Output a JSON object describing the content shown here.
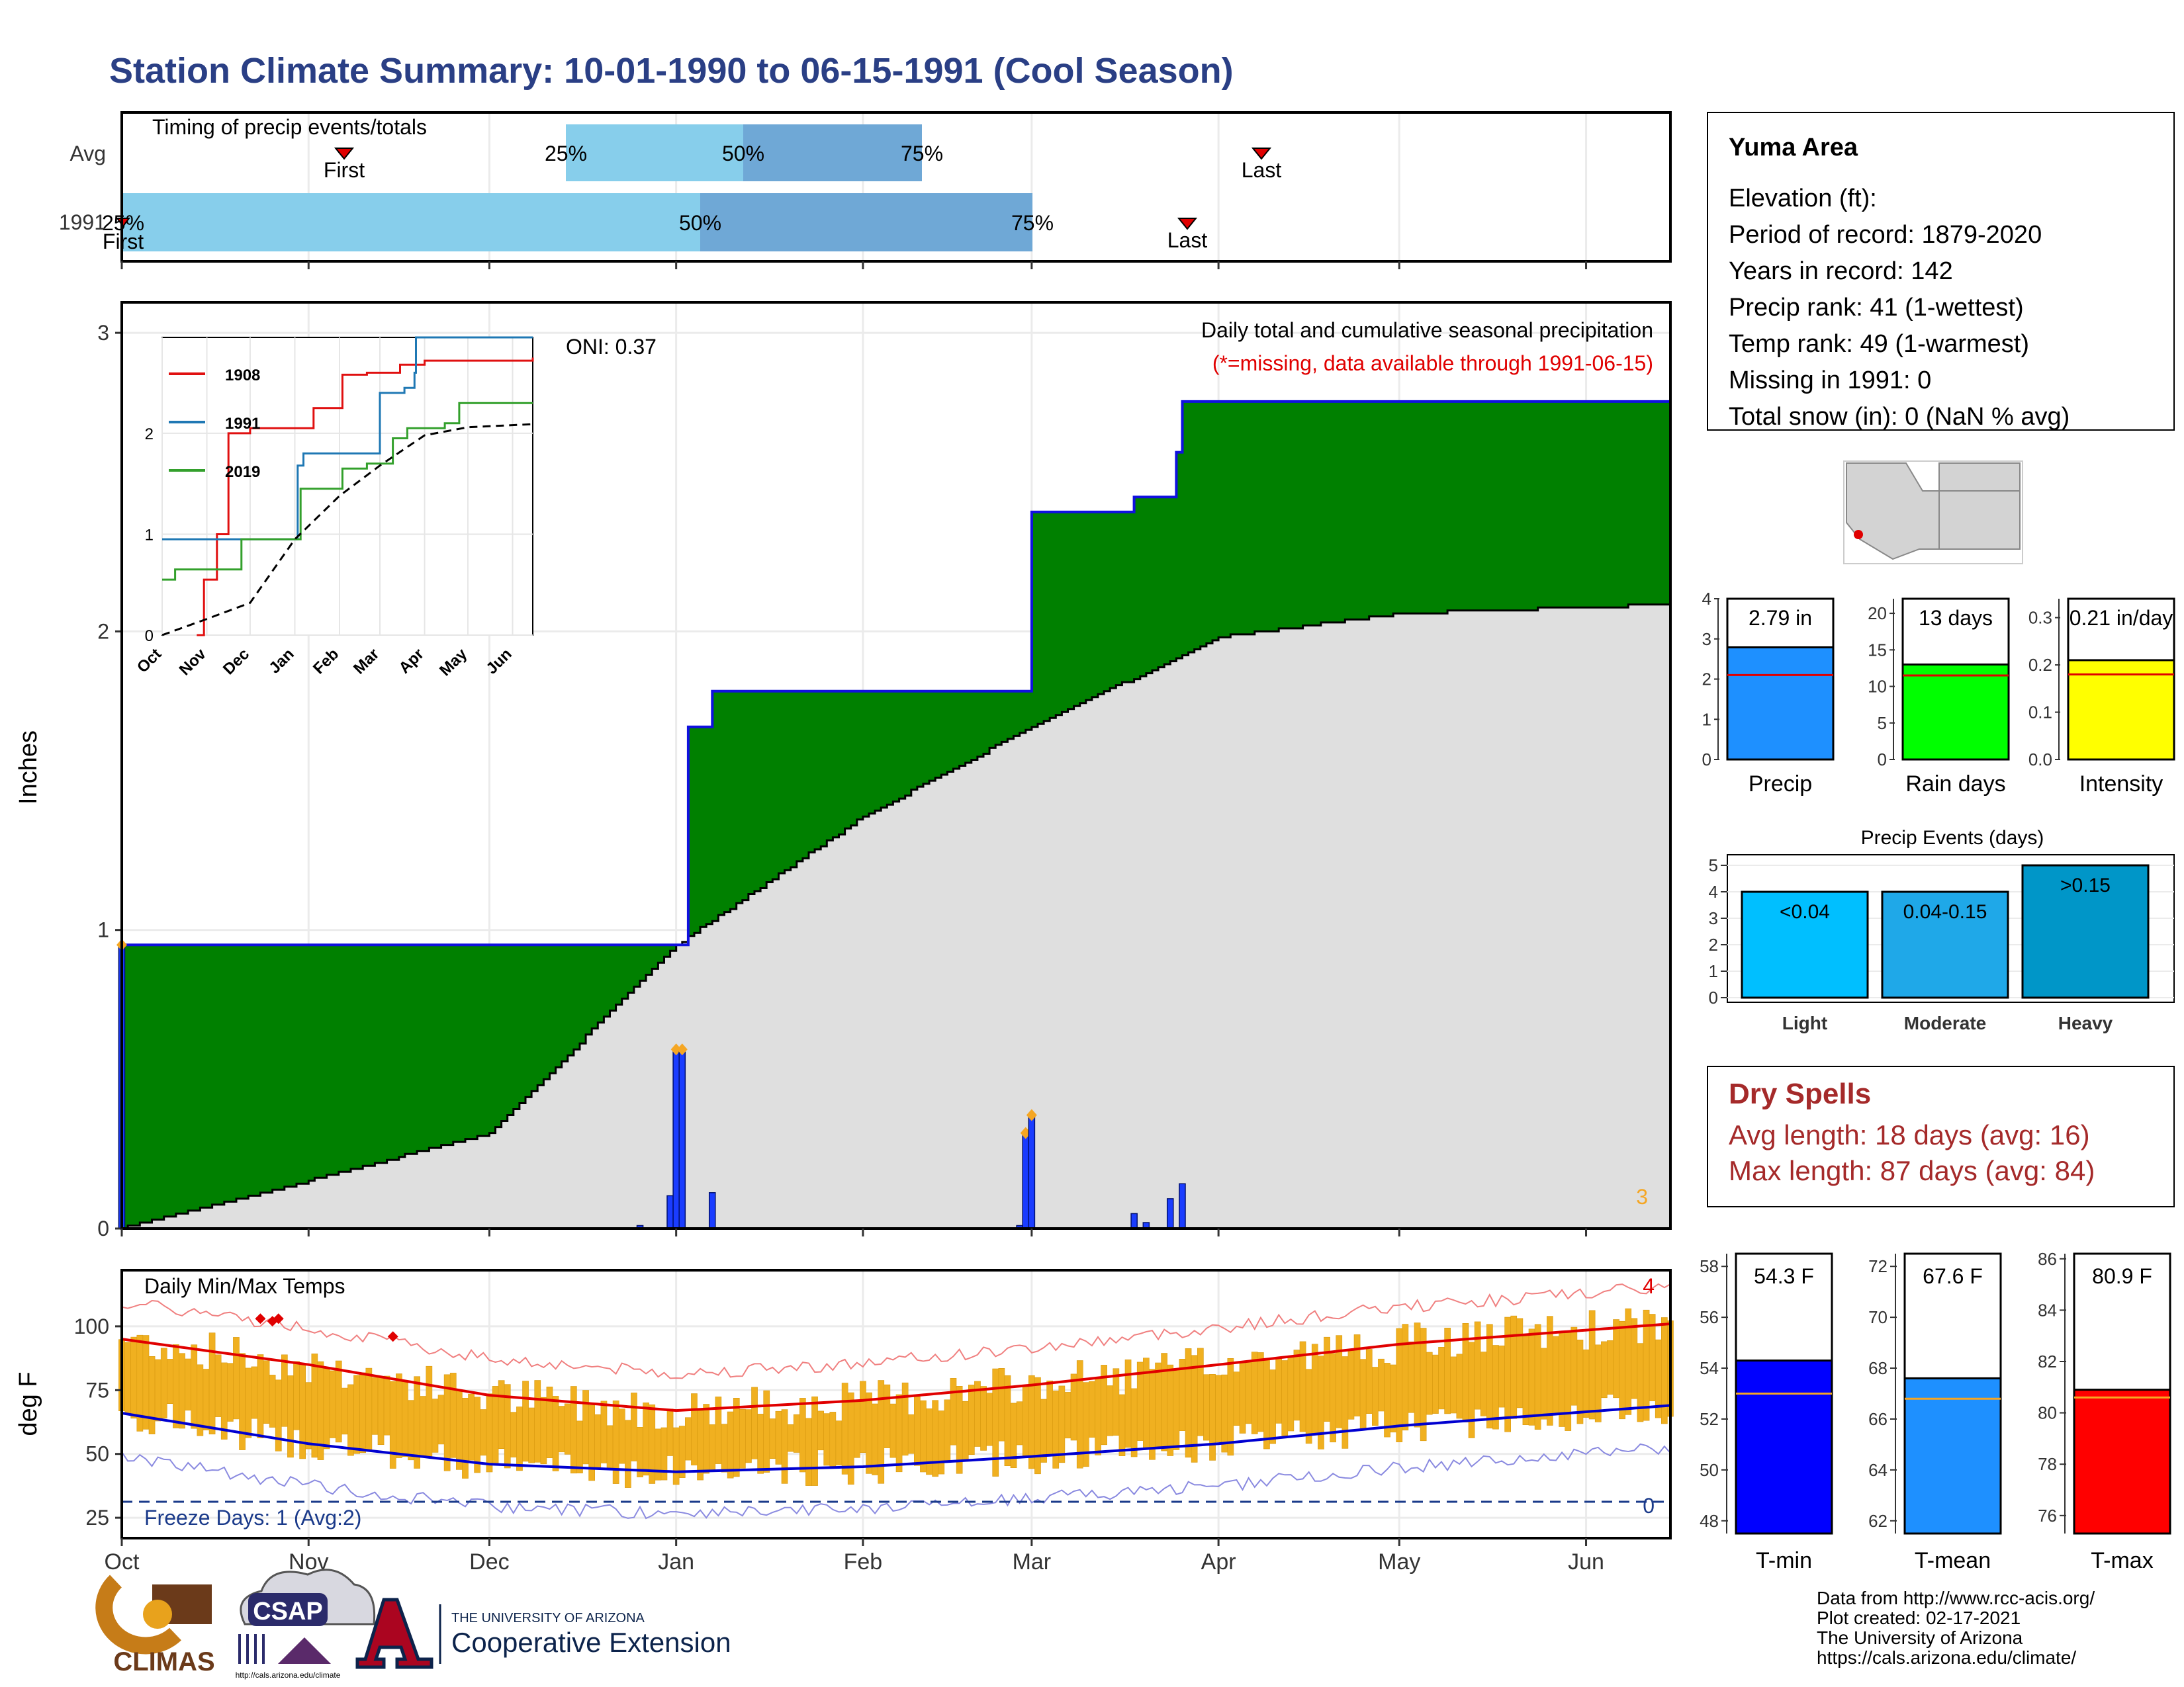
{
  "title": "Station Climate Summary: 10-01-1990 to 06-15-1991 (Cool Season)",
  "colors": {
    "title": "#2a3f85",
    "accent_red": "#a52a2a",
    "precip_green": "#008000",
    "cum_gray": "#dfdfdf",
    "blue_line": "#1010e0",
    "light_blue": "#87ceeb",
    "mid_blue": "#6fa8d6",
    "orange": "#f5a623",
    "temp_bar": "#f0b020"
  },
  "timing_panel": {
    "label": "Timing of precip events/totals",
    "rows": [
      "Avg",
      "1991"
    ],
    "avg_markers": {
      "first": "First",
      "last": "Last",
      "p25": "25%",
      "p50": "50%",
      "p75": "75%"
    },
    "yr_markers": {
      "first": "First",
      "last": "Last",
      "p25": "25%",
      "p50": "50%",
      "p75": "75%"
    }
  },
  "precip_panel": {
    "ylabel": "Inches",
    "oni": "ONI: 0.37",
    "subtitle": "Daily total and cumulative seasonal precipitation",
    "missing_note": "(*=missing, data available through 1991-06-15)",
    "count_label": "3",
    "yticks": [
      "0",
      "1",
      "2",
      "3"
    ]
  },
  "inset": {
    "legend": [
      "1908",
      "1991",
      "2019"
    ],
    "yticks": [
      "0",
      "1",
      "2"
    ],
    "xticks": [
      "Oct",
      "Nov",
      "Dec",
      "Jan",
      "Feb",
      "Mar",
      "Apr",
      "May",
      "Jun"
    ]
  },
  "temp_panel": {
    "label": "Daily Min/Max Temps",
    "ylabel": "deg F",
    "yticks": [
      "25",
      "50",
      "75",
      "100"
    ],
    "freeze_text": "Freeze Days: 1 (Avg:2)",
    "max_count": "4",
    "min_count": "0"
  },
  "xticks": [
    "Oct",
    "Nov",
    "Dec",
    "Jan",
    "Feb",
    "Mar",
    "Apr",
    "May",
    "Jun"
  ],
  "station_box": {
    "name": "Yuma Area",
    "lines": [
      "Elevation (ft):",
      "Period of record: 1879-2020",
      "Years in record: 142",
      "Precip rank: 41 (1-wettest)",
      "Temp rank: 49 (1-warmest)",
      "Missing in 1991: 0",
      "Total snow (in): 0 (NaN % avg)"
    ]
  },
  "summary_bars": {
    "precip": {
      "label": "Precip",
      "value_text": "2.79 in",
      "yticks": [
        "0",
        "1",
        "2",
        "3",
        "4"
      ]
    },
    "rain_days": {
      "label": "Rain days",
      "value_text": "13 days",
      "yticks": [
        "0",
        "5",
        "10",
        "15",
        "20"
      ]
    },
    "intensity": {
      "label": "Intensity",
      "value_text": "0.21 in/day",
      "yticks": [
        "0.0",
        "0.1",
        "0.2",
        "0.3"
      ]
    }
  },
  "events": {
    "title": "Precip Events (days)",
    "yticks": [
      "0",
      "1",
      "2",
      "3",
      "4",
      "5"
    ],
    "bars": [
      {
        "label": "Light",
        "text": "<0.04"
      },
      {
        "label": "Moderate",
        "text": "0.04-0.15"
      },
      {
        "label": "Heavy",
        "text": ">0.15"
      }
    ]
  },
  "dry_spells": {
    "title": "Dry Spells",
    "avg": "Avg length: 18 days (avg: 16)",
    "max": "Max length: 87 days (avg: 84)"
  },
  "temp_bars": {
    "tmin": {
      "label": "T-min",
      "value_text": "54.3 F",
      "yticks": [
        "48",
        "50",
        "52",
        "54",
        "56",
        "58"
      ]
    },
    "tmean": {
      "label": "T-mean",
      "value_text": "67.6 F",
      "yticks": [
        "62",
        "64",
        "66",
        "68",
        "70",
        "72"
      ]
    },
    "tmax": {
      "label": "T-max",
      "value_text": "80.9 F",
      "yticks": [
        "76",
        "78",
        "80",
        "82",
        "84",
        "86"
      ]
    }
  },
  "logos": {
    "climas": "CLIMAS",
    "csap": "CSAP",
    "csap_url": "http://cals.arizona.edu/climate",
    "ua_small": "THE UNIVERSITY OF ARIZONA",
    "ua_big": "Cooperative Extension"
  },
  "footer": [
    "Data from http://www.rcc-acis.org/",
    "Plot created: 02-17-2021",
    "The University of Arizona",
    "https://cals.arizona.edu/climate/"
  ],
  "chart_data": [
    {
      "type": "area",
      "title": "Daily total and cumulative seasonal precipitation",
      "ylabel": "Inches",
      "ylim": [
        0,
        3
      ],
      "cumulative_1991": [
        [
          "1990-10-01",
          0.95
        ],
        [
          "1990-12-31",
          0.95
        ],
        [
          "1991-01-03",
          1.68
        ],
        [
          "1991-01-07",
          1.8
        ],
        [
          "1991-02-27",
          1.8
        ],
        [
          "1991-03-01",
          2.4
        ],
        [
          "1991-03-18",
          2.45
        ],
        [
          "1991-03-25",
          2.6
        ],
        [
          "1991-03-26",
          2.77
        ],
        [
          "1991-06-15",
          2.77
        ]
      ],
      "cumulative_avg": [
        [
          "1990-10-01",
          0.0
        ],
        [
          "1990-11-01",
          0.16
        ],
        [
          "1990-12-01",
          0.32
        ],
        [
          "1991-01-01",
          0.95
        ],
        [
          "1991-02-01",
          1.38
        ],
        [
          "1991-03-01",
          1.68
        ],
        [
          "1991-04-01",
          1.98
        ],
        [
          "1991-05-01",
          2.06
        ],
        [
          "1991-06-15",
          2.09
        ]
      ],
      "daily": [
        [
          "1990-10-01",
          0.95
        ],
        [
          "1990-12-26",
          0.01
        ],
        [
          "1990-12-31",
          0.11
        ],
        [
          "1991-01-01",
          0.6
        ],
        [
          "1991-01-02",
          0.6
        ],
        [
          "1991-01-07",
          0.12
        ],
        [
          "1991-02-27",
          0.01
        ],
        [
          "1991-02-28",
          0.32
        ],
        [
          "1991-03-01",
          0.38
        ],
        [
          "1991-03-18",
          0.05
        ],
        [
          "1991-03-20",
          0.02
        ],
        [
          "1991-03-24",
          0.1
        ],
        [
          "1991-03-26",
          0.15
        ]
      ]
    },
    {
      "type": "line",
      "title": "Daily Min/Max Temps",
      "ylabel": "deg F",
      "ylim": [
        20,
        120
      ],
      "series": [
        {
          "name": "avg_max",
          "values": [
            [
              "1990-10-01",
              95
            ],
            [
              "1990-11-01",
              85
            ],
            [
              "1990-12-01",
              73
            ],
            [
              "1991-01-01",
              67
            ],
            [
              "1991-02-01",
              71
            ],
            [
              "1991-03-01",
              77
            ],
            [
              "1991-04-01",
              85
            ],
            [
              "1991-05-01",
              93
            ],
            [
              "1991-06-15",
              101
            ]
          ]
        },
        {
          "name": "avg_min",
          "values": [
            [
              "1990-10-01",
              66
            ],
            [
              "1990-11-01",
              54
            ],
            [
              "1990-12-01",
              46
            ],
            [
              "1991-01-01",
              43
            ],
            [
              "1991-02-01",
              45
            ],
            [
              "1991-03-01",
              49
            ],
            [
              "1991-04-01",
              54
            ],
            [
              "1991-05-01",
              61
            ],
            [
              "1991-06-15",
              69
            ]
          ]
        }
      ]
    }
  ]
}
